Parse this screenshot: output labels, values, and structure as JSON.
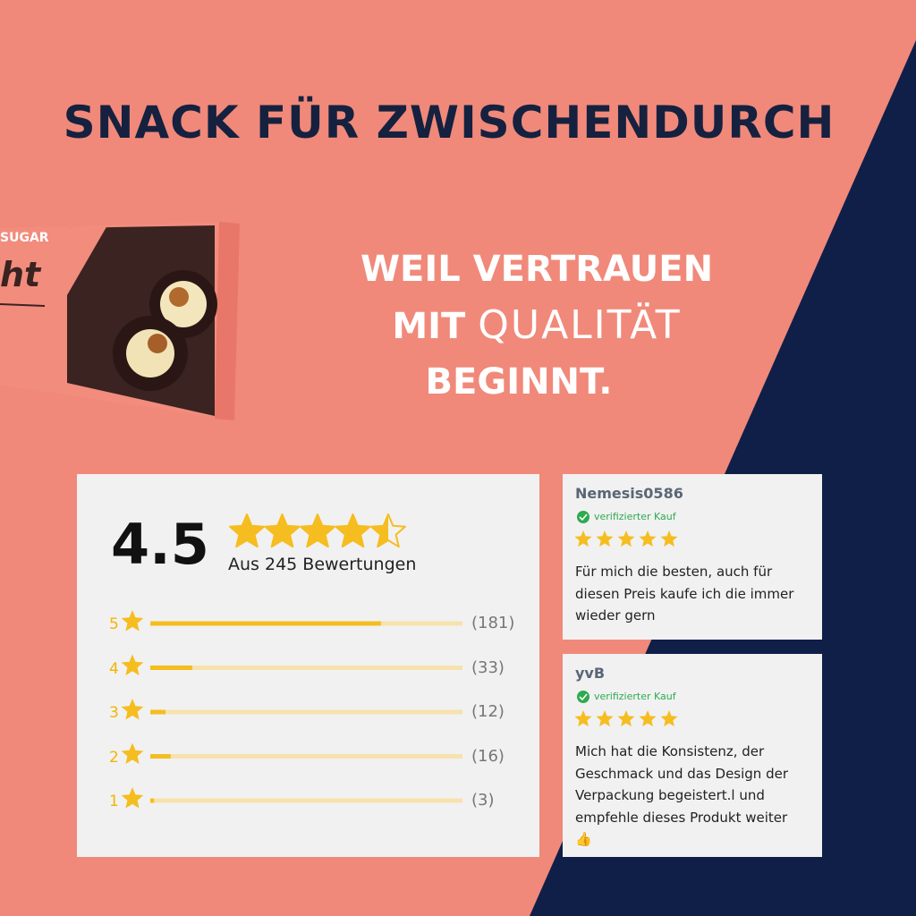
{
  "title": "SNACK FÜR ZWISCHENDURCH",
  "headline": {
    "line1": "WEIL VERTRAUEN",
    "line2_bold": "MIT",
    "line2_light": "QUALITÄT",
    "line3": "BEGINNT."
  },
  "product": {
    "label_top": "SUGAR",
    "label": "ht"
  },
  "rating": {
    "score": 4.5,
    "max_stars": 5,
    "summary": "Aus 245 Bewertungen",
    "rows": [
      {
        "stars": "5",
        "count": 181,
        "count_label": "(181)"
      },
      {
        "stars": "4",
        "count": 33,
        "count_label": "(33)"
      },
      {
        "stars": "3",
        "count": 12,
        "count_label": "(12)"
      },
      {
        "stars": "2",
        "count": 16,
        "count_label": "(16)"
      },
      {
        "stars": "1",
        "count": 3,
        "count_label": "(3)"
      }
    ]
  },
  "reviews": [
    {
      "name": "Nemesis0586",
      "verified": "verifizierter Kauf",
      "text": "Für mich die besten, auch für diesen Preis kaufe ich die immer wieder gern"
    },
    {
      "name": "yvB",
      "verified": "verifizierter Kauf",
      "text": "Mich hat die Konsistenz, der Geschmack und das Design der Verpackung begeistert.l und empfehle dieses Produkt weiter 👍"
    }
  ]
}
